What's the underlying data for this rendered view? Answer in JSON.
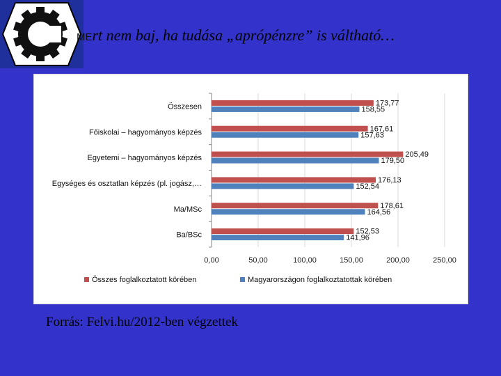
{
  "slide": {
    "logo_text": "ME",
    "title": "rt nem baj, ha tudása „aprópénzre” is váltható…",
    "source": "Forrás: Felvi.hu/2012-ben végzettek"
  },
  "chart_data": {
    "type": "bar",
    "orientation": "horizontal",
    "categories": [
      "Összesen",
      "Főiskolai – hagyományos képzés",
      "Egyetemi – hagyományos képzés",
      "Egységes és osztatlan képzés (pl. jogász,…",
      "Ma/MSc",
      "Ba/BSc"
    ],
    "series": [
      {
        "name": "Összes foglalkoztatott körében",
        "color": "#c0504d",
        "values": [
          173.77,
          167.61,
          205.49,
          176.13,
          178.61,
          152.53
        ],
        "labels": [
          "173,77",
          "167,61",
          "205,49",
          "176,13",
          "178,61",
          "152,53"
        ]
      },
      {
        "name": "Magyarországon foglalkoztatottak körében",
        "color": "#4f81bd",
        "values": [
          158.55,
          157.63,
          179.5,
          152.54,
          164.56,
          141.96
        ],
        "labels": [
          "158,55",
          "157,63",
          "179,50",
          "152,54",
          "164,56",
          "141,96"
        ]
      }
    ],
    "xlim": [
      0,
      250
    ],
    "ticks": [
      0,
      50,
      100,
      150,
      200,
      250
    ],
    "tick_labels": [
      "0,00",
      "50,00",
      "100,00",
      "150,00",
      "200,00",
      "250,00"
    ],
    "grid": true,
    "legend_position": "bottom"
  }
}
